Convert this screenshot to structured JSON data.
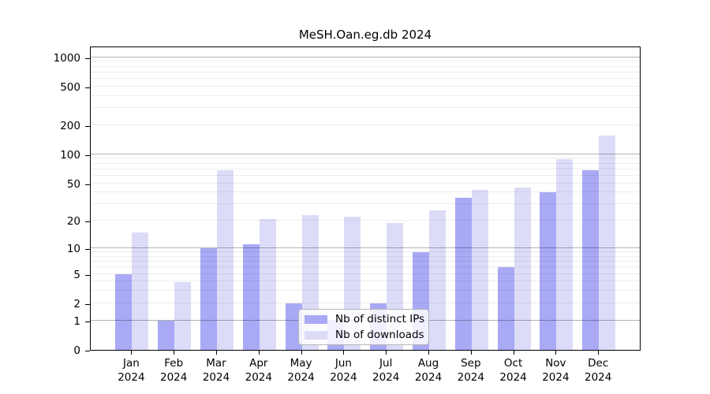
{
  "title": "MeSH.Oan.eg.db 2024",
  "colors": {
    "ips_bar": "#a9a9f6",
    "downloads_bar": "#dcdcf8",
    "axis": "#000000"
  },
  "legend": {
    "items": [
      {
        "label": "Nb of distinct IPs",
        "series": "ips"
      },
      {
        "label": "Nb of downloads",
        "series": "downloads"
      }
    ]
  },
  "chart_data": {
    "type": "bar",
    "title": "MeSH.Oan.eg.db 2024",
    "x_categories": [
      "Jan",
      "Feb",
      "Mar",
      "Apr",
      "May",
      "Jun",
      "Jul",
      "Aug",
      "Sep",
      "Oct",
      "Nov",
      "Dec"
    ],
    "x_year": "2024",
    "series": [
      {
        "name": "Nb of distinct IPs",
        "values": [
          5,
          1,
          10,
          11,
          2,
          1,
          2,
          9,
          35,
          6,
          40,
          68
        ]
      },
      {
        "name": "Nb of downloads",
        "values": [
          15,
          4,
          68,
          21,
          23,
          22,
          19,
          26,
          43,
          45,
          90,
          156
        ]
      }
    ],
    "y_scale": "log1p",
    "y_ticks": [
      0,
      1,
      2,
      5,
      10,
      20,
      50,
      100,
      200,
      500,
      1000
    ],
    "ylim": [
      0,
      1300
    ],
    "grid": "horizontal; major at 1,10,100,1000; minor at 2-9 per decade",
    "legend_position": "inside-bottom-center"
  }
}
